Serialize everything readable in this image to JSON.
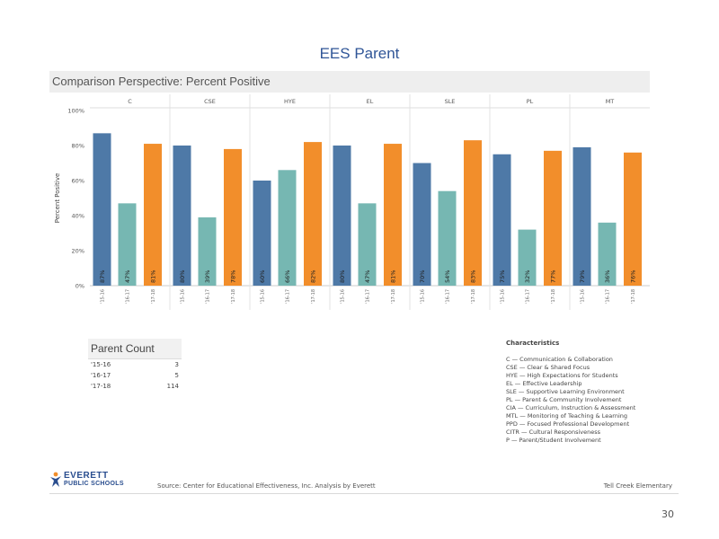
{
  "page_title": "EES Parent",
  "panel_title": "Comparison Perspective: Percent Positive",
  "chart_data": {
    "type": "bar",
    "groups": [
      "C",
      "CSE",
      "HYE",
      "EL",
      "SLE",
      "PL",
      "MT"
    ],
    "years": [
      "'15-16",
      "'16-17",
      "'17-18"
    ],
    "values": [
      [
        87,
        47,
        81
      ],
      [
        80,
        39,
        78
      ],
      [
        60,
        66,
        82
      ],
      [
        80,
        47,
        81
      ],
      [
        70,
        54,
        83
      ],
      [
        75,
        32,
        77
      ],
      [
        79,
        36,
        76
      ]
    ],
    "data_labels": [
      [
        "87%",
        "47%",
        "81%"
      ],
      [
        "80%",
        "39%",
        "78%"
      ],
      [
        "60%",
        "66%",
        "82%"
      ],
      [
        "80%",
        "47%",
        "81%"
      ],
      [
        "70%",
        "54%",
        "83%"
      ],
      [
        "75%",
        "32%",
        "77%"
      ],
      [
        "79%",
        "36%",
        "76%"
      ]
    ],
    "ylabel": "Percent Positive",
    "yticks": [
      "0%",
      "20%",
      "40%",
      "60%",
      "80%",
      "100%"
    ],
    "ylim": [
      0,
      100
    ],
    "colors": [
      "#4e79a7",
      "#76b7b2",
      "#f28e2b"
    ],
    "grid": false
  },
  "parent_count": {
    "title": "Parent Count",
    "rows": [
      {
        "year": "'15-16",
        "count": "3"
      },
      {
        "year": "'16-17",
        "count": "5"
      },
      {
        "year": "'17-18",
        "count": "114"
      }
    ]
  },
  "characteristics": {
    "title": "Characteristics",
    "items": [
      "C — Communication & Collaboration",
      "CSE — Clear & Shared Focus",
      "HYE — High Expectations for Students",
      "EL — Effective Leadership",
      "SLE — Supportive Learning Environment",
      "PL — Parent & Community Involvement",
      "CIA — Curriculum, Instruction & Assessment",
      "MTL — Monitoring of Teaching & Learning",
      "PPD — Focused Professional Development",
      "CITR — Cultural Responsiveness",
      "P — Parent/Student Involvement"
    ]
  },
  "footer": {
    "logo_line1": "EVERETT",
    "logo_line2": "PUBLIC SCHOOLS",
    "caption": "Source: Center for Educational Effectiveness, Inc. Analysis by Everett",
    "school": "Tell Creek Elementary"
  },
  "page_number": "30"
}
